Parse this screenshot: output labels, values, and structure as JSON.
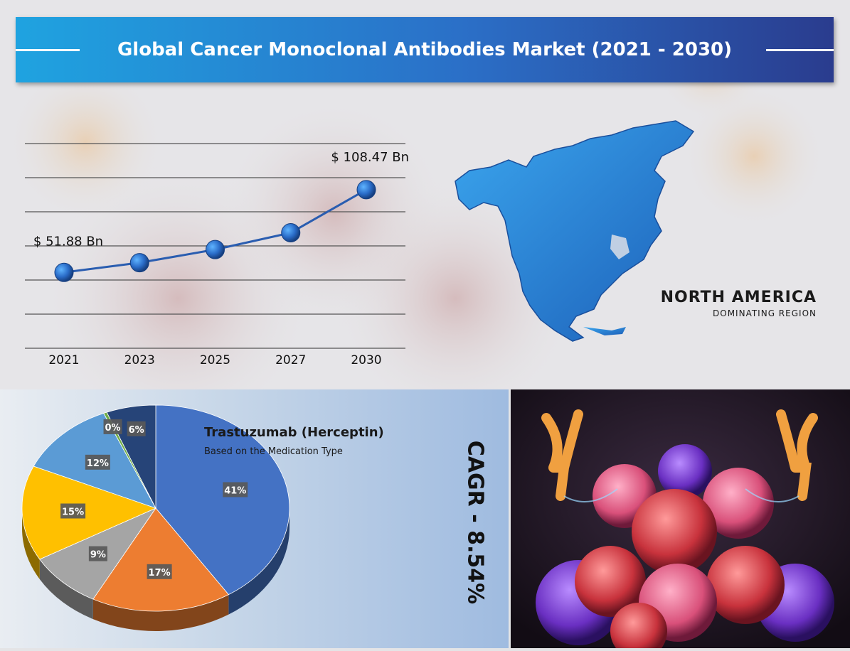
{
  "title": "Global Cancer Monoclonal Antibodies Market  (2021 - 2030)",
  "chart_data": [
    {
      "type": "line",
      "x": [
        "2021",
        "2023",
        "2025",
        "2027",
        "2030"
      ],
      "series": [
        {
          "values": [
            51.88,
            58.5,
            67.5,
            79.0,
            108.47
          ]
        }
      ],
      "data_labels": [
        {
          "index": 0,
          "text": "$ 51.88 Bn"
        },
        {
          "index": 4,
          "text": "$ 108.47 Bn"
        }
      ],
      "ylim": [
        0,
        140
      ],
      "grid": true,
      "color": "#2a6cc8"
    },
    {
      "type": "pie",
      "title": "Trastuzumab (Herceptin)",
      "subtitle": "Based on the Medication Type",
      "labels": [
        "41%",
        "17%",
        "9%",
        "15%",
        "12%",
        "0%",
        "6%"
      ],
      "values": [
        41,
        17,
        9,
        15,
        12,
        0.4,
        6
      ],
      "colors": [
        "#4472c4",
        "#ed7d31",
        "#a5a5a5",
        "#ffc000",
        "#5b9bd5",
        "#70ad47",
        "#264478"
      ]
    }
  ],
  "region": {
    "name": "NORTH AMERICA",
    "subtitle": "DOMINATING REGION"
  },
  "cagr": "CAGR -  8.54%",
  "colors": {
    "banner_start": "#1fa3e0",
    "banner_end": "#2a3c8e",
    "map": "#2f8fdb"
  }
}
